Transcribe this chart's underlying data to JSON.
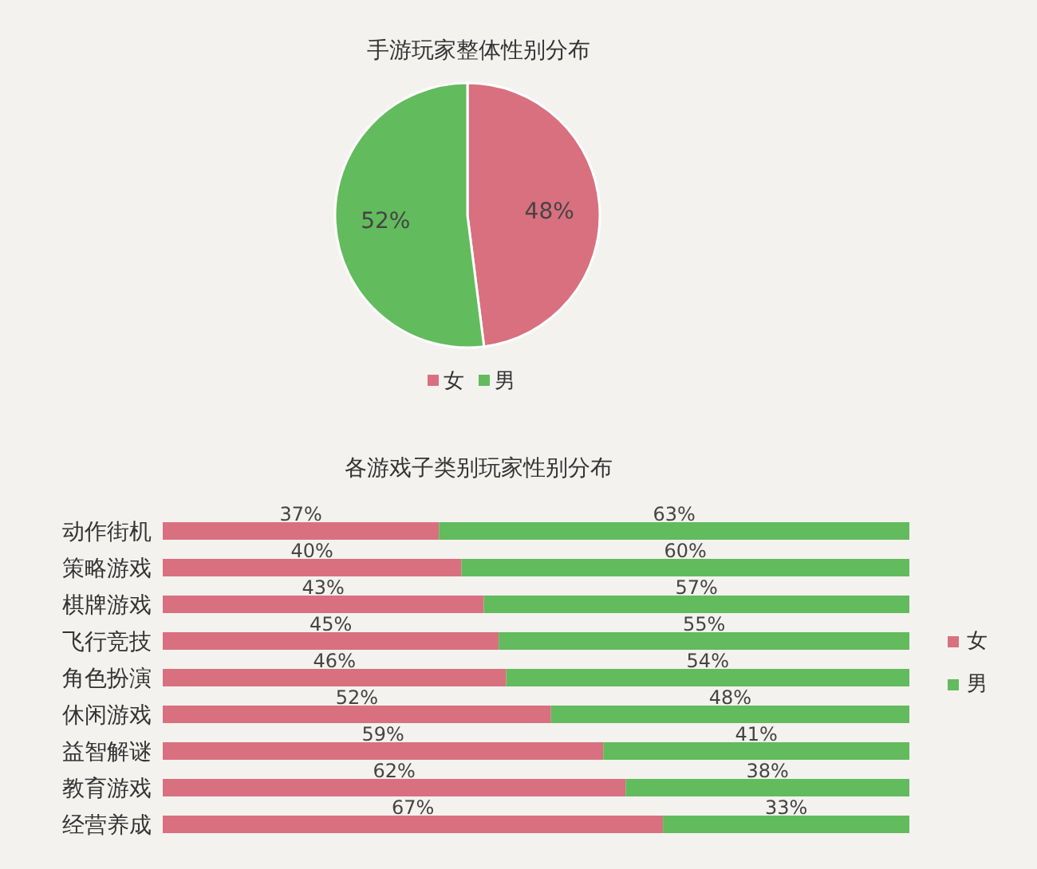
{
  "chart_data": [
    {
      "type": "pie",
      "title": "手游玩家整体性别分布",
      "categories": [
        "女",
        "男"
      ],
      "values": [
        48,
        52
      ],
      "value_labels": [
        "48%",
        "52%"
      ],
      "colors": [
        "#d9707f",
        "#62bb5c"
      ],
      "legend": "bottom"
    },
    {
      "type": "bar",
      "orientation": "horizontal",
      "stacked": true,
      "title": "各游戏子类别玩家性别分布",
      "categories": [
        "动作街机",
        "策略游戏",
        "棋牌游戏",
        "飞行竞技",
        "角色扮演",
        "休闲游戏",
        "益智解谜",
        "教育游戏",
        "经营养成"
      ],
      "legend": "right",
      "series": [
        {
          "name": "女",
          "color": "#d9707f",
          "values": [
            37,
            40,
            43,
            45,
            46,
            52,
            59,
            62,
            67
          ],
          "value_labels": [
            "37%",
            "40%",
            "43%",
            "45%",
            "46%",
            "52%",
            "59%",
            "62%",
            "67%"
          ]
        },
        {
          "name": "男",
          "color": "#62bb5c",
          "values": [
            63,
            60,
            57,
            55,
            54,
            48,
            41,
            38,
            33
          ],
          "value_labels": [
            "63%",
            "60%",
            "57%",
            "55%",
            "54%",
            "48%",
            "41%",
            "38%",
            "33%"
          ]
        }
      ]
    }
  ]
}
